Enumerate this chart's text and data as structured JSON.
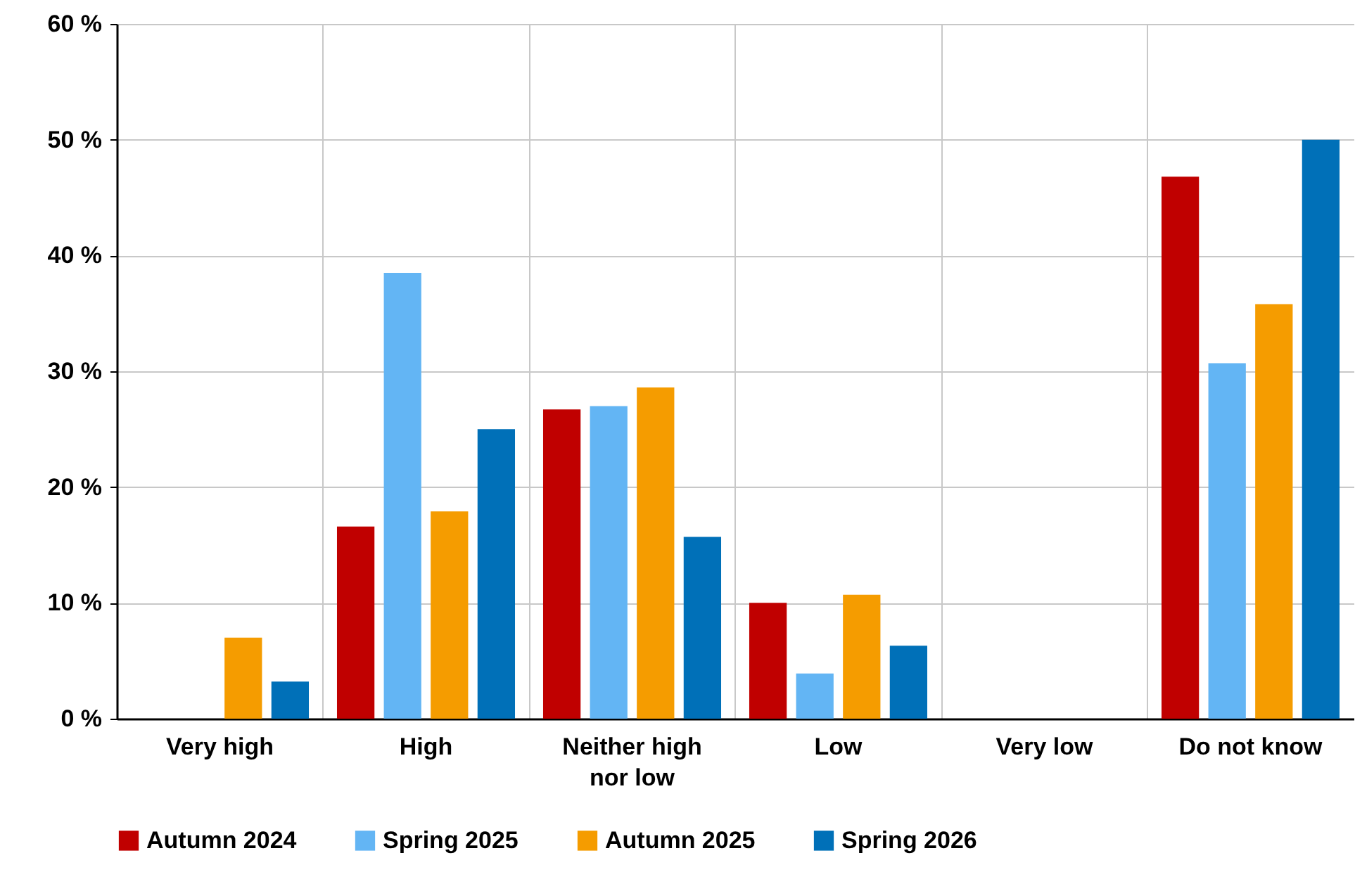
{
  "chart_data": {
    "type": "bar",
    "categories": [
      "Very high",
      "High",
      "Neither high nor low",
      "Low",
      "Very low",
      "Do not know"
    ],
    "series": [
      {
        "name": "Autumn 2024",
        "color": "#c00000",
        "values": [
          0,
          16.6,
          26.7,
          10.0,
          0,
          46.8
        ]
      },
      {
        "name": "Spring 2025",
        "color": "#63b5f4",
        "values": [
          0,
          38.5,
          27.0,
          3.9,
          0,
          30.7
        ]
      },
      {
        "name": "Autumn 2025",
        "color": "#f59c00",
        "values": [
          7.0,
          17.9,
          28.6,
          10.7,
          0,
          35.8
        ]
      },
      {
        "name": "Spring 2026",
        "color": "#0070b8",
        "values": [
          3.2,
          25.0,
          15.7,
          6.3,
          0,
          50.0
        ]
      }
    ],
    "ylim": [
      0,
      60
    ],
    "yticks": [
      {
        "value": 0,
        "label": "0 %"
      },
      {
        "value": 10,
        "label": "10 %"
      },
      {
        "value": 20,
        "label": "20 %"
      },
      {
        "value": 30,
        "label": "30 %"
      },
      {
        "value": 40,
        "label": "40 %"
      },
      {
        "value": 50,
        "label": "50 %"
      },
      {
        "value": 60,
        "label": "60 %"
      }
    ],
    "grid": true,
    "legend": "bottom"
  }
}
